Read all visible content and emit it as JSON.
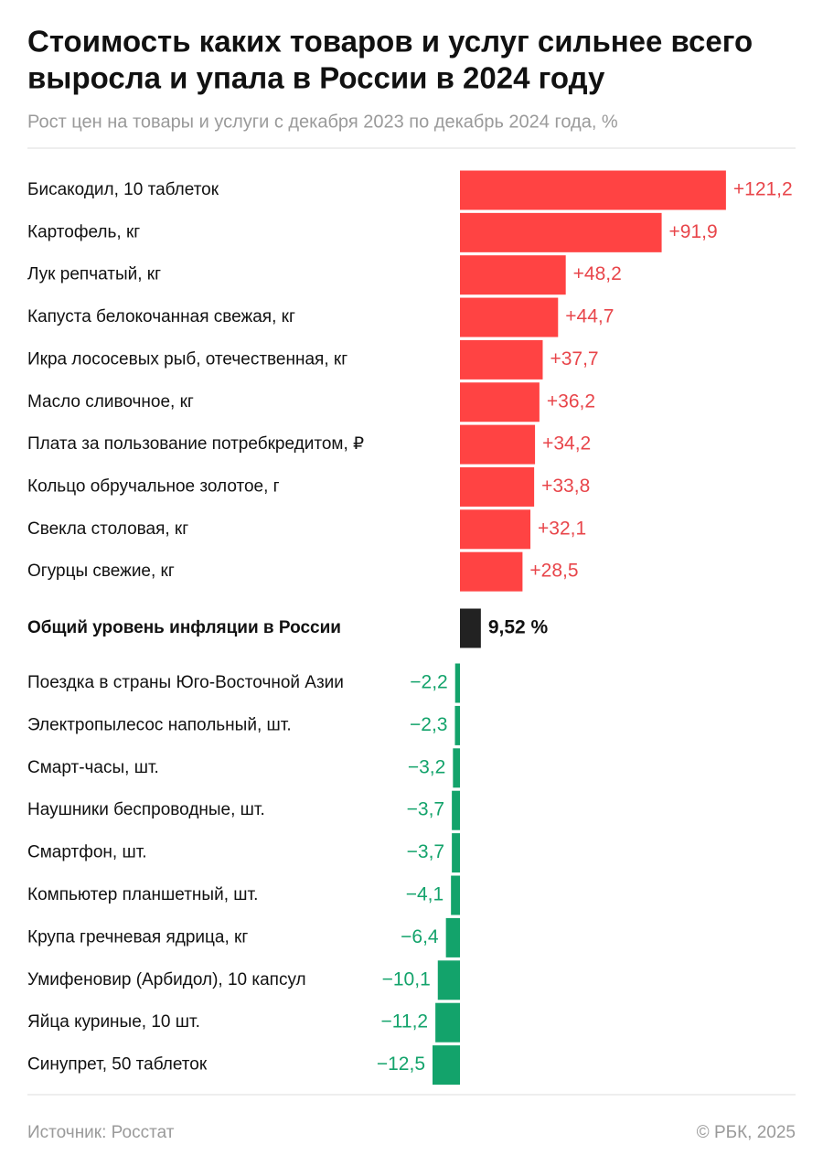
{
  "chart_data": {
    "type": "bar",
    "orientation": "horizontal",
    "title_lines": [
      "Стоимость каких товаров и услуг сильнее всего",
      "выросла и упала в России в 2024 году"
    ],
    "subtitle": "Рост цен на товары и услуги с декабря 2023 по декабрь 2024 года, %",
    "categories": [
      "Бисакодил, 10 таблеток",
      "Картофель, кг",
      "Лук репчатый, кг",
      "Капуста белокочанная свежая, кг",
      "Икра лососевых рыб, отечественная, кг",
      "Масло сливочное, кг",
      "Плата за пользование потребкредитом, ₽",
      "Кольцо обручальное золотое, г",
      "Свекла столовая, кг",
      "Огурцы свежие, кг",
      "Общий уровень инфляции в России",
      "Поездка в страны Юго-Восточной Азии",
      "Электропылесос напольный, шт.",
      "Смарт-часы, шт.",
      "Наушники беспроводные, шт.",
      "Смартфон, шт.",
      "Компьютер планшетный, шт.",
      "Крупа гречневая ядрица, кг",
      "Умифеновир (Арбидол), 10 капсул",
      "Яйца куриные, 10 шт.",
      "Синупрет, 50 таблеток"
    ],
    "values": [
      121.2,
      91.9,
      48.2,
      44.7,
      37.7,
      36.2,
      34.2,
      33.8,
      32.1,
      28.5,
      9.52,
      -2.2,
      -2.3,
      -3.2,
      -3.7,
      -3.7,
      -4.1,
      -6.4,
      -10.1,
      -11.2,
      -12.5
    ],
    "value_labels": [
      "+121,2",
      "+91,9",
      "+48,2",
      "+44,7",
      "+37,7",
      "+36,2",
      "+34,2",
      "+33,8",
      "+32,1",
      "+28,5",
      "9,52 %",
      "−2,2",
      "−2,3",
      "−3,2",
      "−3,7",
      "−3,7",
      "−4,1",
      "−6,4",
      "−10,1",
      "−11,2",
      "−12,5"
    ],
    "colors": [
      "#ff4343",
      "#ff4343",
      "#ff4343",
      "#ff4343",
      "#ff4343",
      "#ff4343",
      "#ff4343",
      "#ff4343",
      "#ff4343",
      "#ff4343",
      "#222222",
      "#13a36b",
      "#13a36b",
      "#13a36b",
      "#13a36b",
      "#13a36b",
      "#13a36b",
      "#13a36b",
      "#13a36b",
      "#13a36b",
      "#13a36b"
    ],
    "source": "Источник: Росстат",
    "credit": "© РБК, 2025"
  }
}
